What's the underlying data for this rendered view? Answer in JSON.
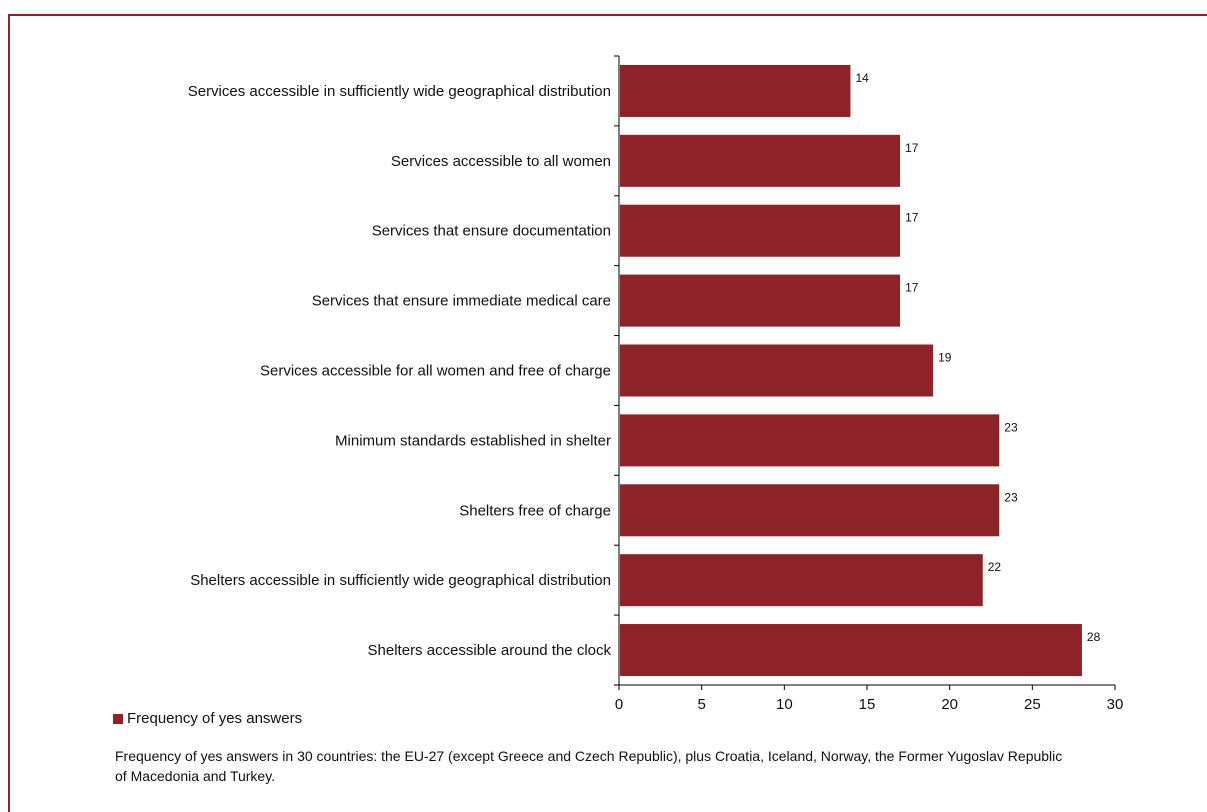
{
  "chart_data": {
    "type": "bar",
    "orientation": "horizontal",
    "categories": [
      "Services accessible in sufficiently wide geographical distribution",
      "Services accessible to all women",
      "Services that ensure documentation",
      "Services that ensure immediate medical care",
      "Services accessible for all women and free of charge",
      "Minimum standards established in shelter",
      "Shelters free of charge",
      "Shelters accessible in sufficiently wide geographical distribution",
      "Shelters accessible around the clock"
    ],
    "series": [
      {
        "name": "Frequency of yes answers",
        "values": [
          14,
          17,
          17,
          17,
          19,
          23,
          23,
          22,
          28
        ]
      }
    ],
    "xlim": [
      0,
      30
    ],
    "xticks": [
      0,
      5,
      10,
      15,
      20,
      25,
      30
    ],
    "grid": false,
    "legend_position": "bottom-left",
    "colors": {
      "bar": "#8b2328",
      "axis": "#000000"
    }
  },
  "legend": {
    "label": "Frequency of yes answers"
  },
  "note": "Frequency of yes answers in 30 countries: the EU-27 (except Greece and Czech Republic), plus Croatia, Iceland, Norway, the Former Yugoslav Republic of Macedonia and Turkey."
}
